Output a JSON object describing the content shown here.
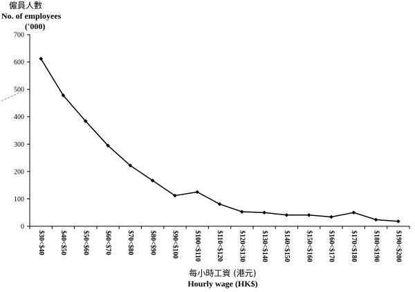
{
  "chart_data": {
    "type": "line",
    "title": "",
    "ylabel_zh": "僱員人數",
    "ylabel": "No. of employees",
    "yunit": "('000)",
    "xlabel_zh": "每小時工資 (港元)",
    "xlabel": "Hourly wage (HK$)",
    "ylim": [
      0,
      700
    ],
    "yticks": [
      0,
      100,
      200,
      300,
      400,
      500,
      600,
      700
    ],
    "grid": false,
    "legend": "none",
    "categories": [
      "$30<$40",
      "$40<$50",
      "$50<$60",
      "$60<$70",
      "$70<$80",
      "$80<$90",
      "$90<$100",
      "$100<$110",
      "$110<$120",
      "$120<$130",
      "$130<$140",
      "$140<$150",
      "$150<$160",
      "$160<$170",
      "$170<$180",
      "$180<$190",
      "$190<$200"
    ],
    "series": [
      {
        "values": [
          612,
          478,
          384,
          295,
          222,
          167,
          112,
          125,
          81,
          53,
          50,
          41,
          41,
          34,
          50,
          24,
          18
        ]
      }
    ],
    "line_color": "#000000",
    "marker": "diamond"
  }
}
